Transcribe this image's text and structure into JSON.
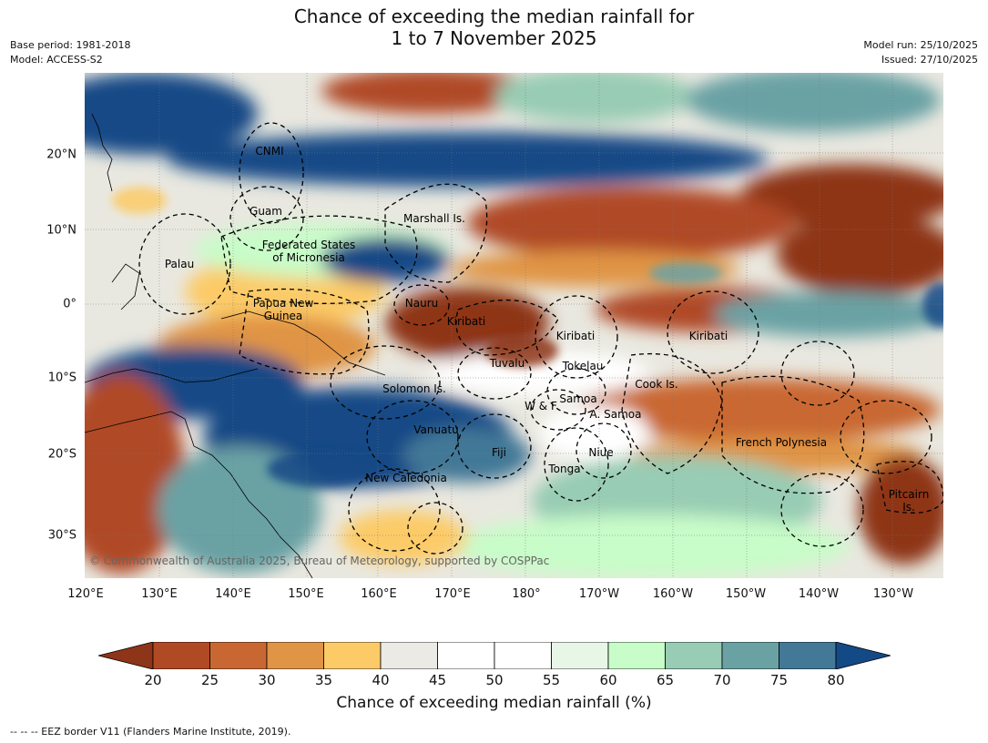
{
  "title_line1": "Chance of exceeding the median rainfall for",
  "title_line2": "1 to 7 November 2025",
  "meta_left": [
    "Base period: 1981-2018",
    "Model: ACCESS-S2"
  ],
  "meta_right": [
    "Model run: 25/10/2025",
    "Issued: 27/10/2025"
  ],
  "latitude_labels": [
    "20°N",
    "10°N",
    "0°",
    "10°S",
    "20°S",
    "30°S"
  ],
  "longitude_labels": [
    "120°E",
    "130°E",
    "140°E",
    "150°E",
    "160°E",
    "170°E",
    "180°",
    "170°W",
    "160°W",
    "150°W",
    "140°W",
    "130°W"
  ],
  "regions": [
    "CNMI",
    "Guam",
    "Marshall Is.",
    "Federated States\nof Micronesia",
    "Palau",
    "Papua New\nGuinea",
    "Nauru",
    "Kiribati",
    "Kiribati",
    "Kiribati",
    "Tuvalu",
    "Tokelau",
    "Cook Is.",
    "Solomon Is.",
    "W & F",
    "Samoa",
    "A. Samoa",
    "Vanuatu",
    "Fiji",
    "Niue",
    "Tonga",
    "New Caledonia",
    "French Polynesia",
    "Pitcairn\nIs."
  ],
  "copyright": "© Commonwealth of Australia 2025, Bureau of Meteorology, supported by COSPPac",
  "colorbar": {
    "title": "Chance of exceeding median rainfall (%)",
    "ticks": [
      "20",
      "25",
      "30",
      "35",
      "40",
      "45",
      "50",
      "55",
      "60",
      "65",
      "70",
      "75",
      "80"
    ],
    "colors": [
      "#8e3418",
      "#b04a25",
      "#c96733",
      "#e09445",
      "#fccb68",
      "#ebeae4",
      "#ffffff",
      "#ffffff",
      "#e8f6e8",
      "#c8fcc8",
      "#98ccb4",
      "#6aa2a4",
      "#437897",
      "#134a86"
    ]
  },
  "footnote": "-- -- -- EEZ border V11 (Flanders Marine Institute, 2019)."
}
